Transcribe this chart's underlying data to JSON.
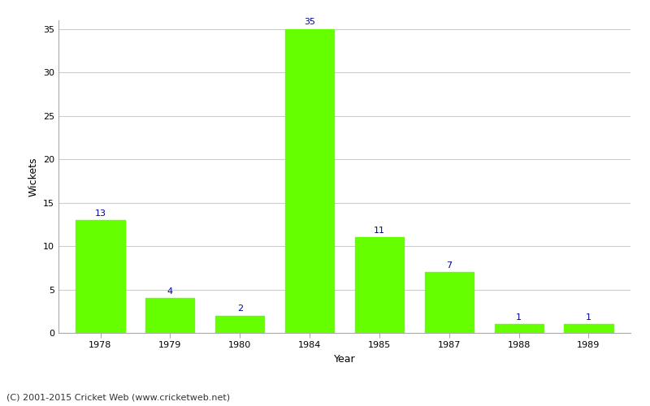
{
  "categories": [
    "1978",
    "1979",
    "1980",
    "1984",
    "1985",
    "1987",
    "1988",
    "1989"
  ],
  "values": [
    13,
    4,
    2,
    35,
    11,
    7,
    1,
    1
  ],
  "bar_color": "#66ff00",
  "bar_edge_color": "#66ff00",
  "xlabel": "Year",
  "ylabel": "Wickets",
  "ylim": [
    0,
    36
  ],
  "yticks": [
    0,
    5,
    10,
    15,
    20,
    25,
    30,
    35
  ],
  "annotation_color": "#000099",
  "annotation_fontsize": 8,
  "background_color": "#ffffff",
  "grid_color": "#cccccc",
  "footer_text": "(C) 2001-2015 Cricket Web (www.cricketweb.net)",
  "footer_fontsize": 8,
  "footer_color": "#333333",
  "axis_label_fontsize": 9,
  "tick_fontsize": 8,
  "bar_width": 0.7
}
